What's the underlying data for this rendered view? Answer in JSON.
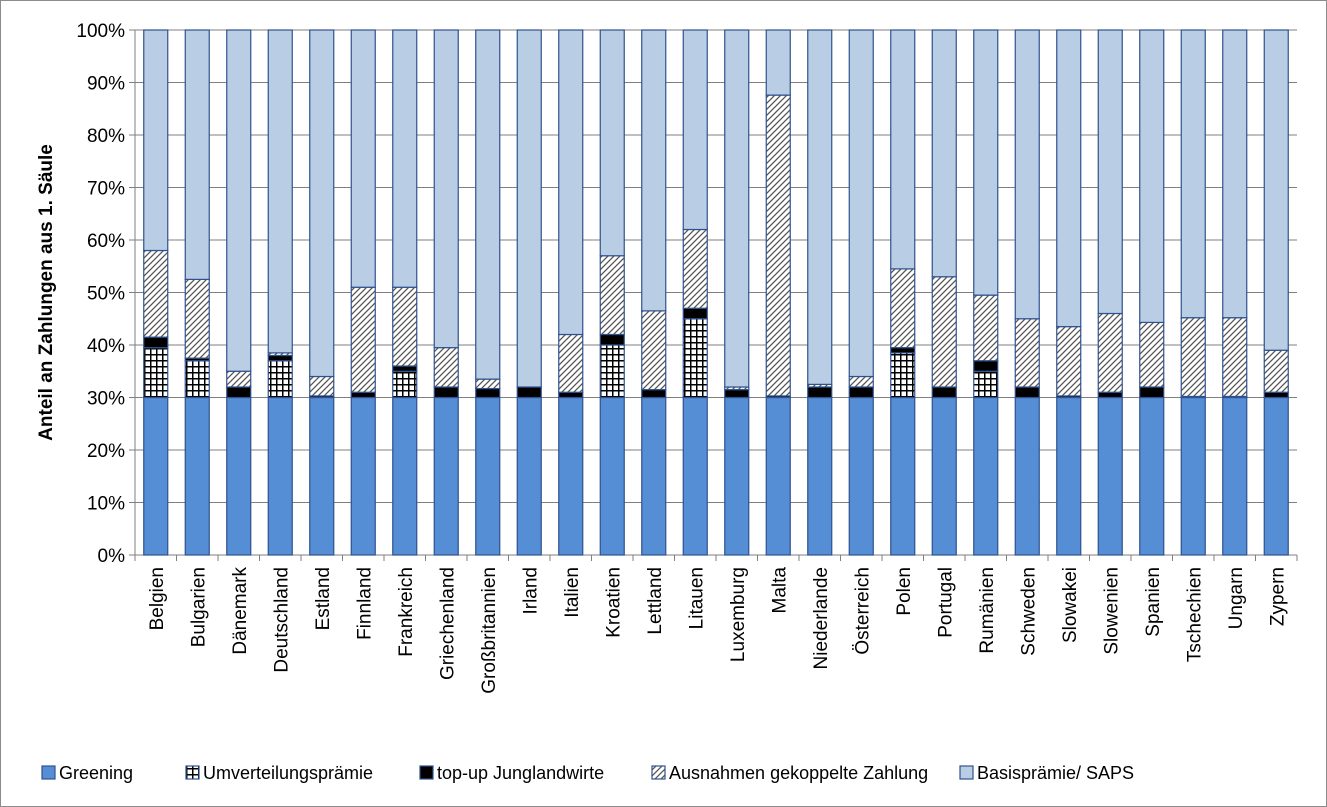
{
  "chart_data": {
    "type": "bar",
    "stacked": true,
    "title": "",
    "xlabel": "",
    "ylabel": "Anteil an Zahlungen aus 1. Säule",
    "ylim": [
      0,
      100
    ],
    "y_ticks": [
      "0%",
      "10%",
      "20%",
      "30%",
      "40%",
      "50%",
      "60%",
      "70%",
      "80%",
      "90%",
      "100%"
    ],
    "grid": true,
    "legend_position": "bottom",
    "categories": [
      "Belgien",
      "Bulgarien",
      "Dänemark",
      "Deutschland",
      "Estland",
      "Finnland",
      "Frankreich",
      "Griechenland",
      "Großbritannien",
      "Irland",
      "Italien",
      "Kroatien",
      "Lettland",
      "Litauen",
      "Luxemburg",
      "Malta",
      "Niederlande",
      "Österreich",
      "Polen",
      "Portugal",
      "Rumänien",
      "Schweden",
      "Slowakei",
      "Slowenien",
      "Spanien",
      "Tschechien",
      "Ungarn",
      "Zypern"
    ],
    "series": [
      {
        "name": "Greening",
        "color": "#558ed5",
        "pattern": "solid",
        "values": [
          30,
          30,
          30,
          30,
          30,
          30,
          30,
          30,
          30,
          30,
          30,
          30,
          30,
          30,
          30,
          30,
          30,
          30,
          30,
          30,
          30,
          30,
          30,
          30,
          30,
          30,
          30,
          30
        ]
      },
      {
        "name": "Umverteilungsprämie",
        "color": "#000000",
        "pattern": "grid",
        "values": [
          9.5,
          7,
          0,
          7,
          0,
          0,
          5,
          0,
          0,
          0,
          0,
          10,
          0,
          15,
          0,
          0,
          0,
          0,
          8.5,
          0,
          5,
          0,
          0,
          0,
          0,
          0,
          0,
          0
        ]
      },
      {
        "name": "top-up Junglandwirte",
        "color": "#000000",
        "pattern": "solid",
        "values": [
          2,
          0.5,
          2,
          1,
          0.3,
          1,
          1,
          2,
          1.7,
          2,
          1,
          2,
          1.5,
          2,
          1.5,
          0.3,
          2,
          2,
          1,
          2,
          2,
          2,
          0.3,
          1,
          2,
          0.2,
          0.2,
          1
        ]
      },
      {
        "name": "Ausnahmen gekoppelte Zahlung",
        "color": "#ffffff",
        "pattern": "diagonal",
        "values": [
          16.5,
          15,
          3,
          0.5,
          3.7,
          20,
          15,
          7.5,
          1.8,
          0,
          11,
          15,
          15,
          15,
          0.5,
          57.3,
          0.5,
          2,
          15,
          21,
          12.5,
          13,
          13.2,
          15,
          12.3,
          15,
          15,
          8
        ]
      },
      {
        "name": "Basisprämie/ SAPS",
        "color": "#b9cde5",
        "pattern": "solid",
        "values": [
          42,
          47.5,
          65,
          61.5,
          66,
          49,
          49,
          60.5,
          66.5,
          68,
          58,
          43,
          53.5,
          38,
          68,
          12.4,
          67.5,
          66,
          45.5,
          47,
          50.5,
          55,
          56.5,
          54,
          55.7,
          54.8,
          54.8,
          61
        ]
      }
    ]
  }
}
